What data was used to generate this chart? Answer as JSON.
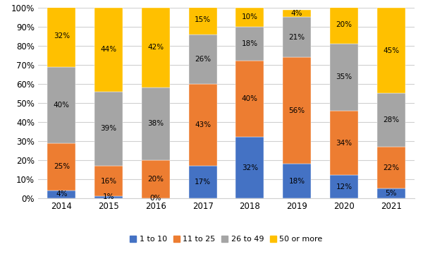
{
  "years": [
    "2014",
    "2015",
    "2016",
    "2017",
    "2018",
    "2019",
    "2020",
    "2021"
  ],
  "series": {
    "1 to 10": [
      4,
      1,
      0,
      17,
      32,
      18,
      12,
      5
    ],
    "11 to 25": [
      25,
      16,
      20,
      43,
      40,
      56,
      34,
      22
    ],
    "26 to 49": [
      40,
      39,
      38,
      26,
      18,
      21,
      35,
      28
    ],
    "50 or more": [
      32,
      44,
      42,
      15,
      10,
      4,
      20,
      45
    ]
  },
  "colors": {
    "1 to 10": "#4472C4",
    "11 to 25": "#ED7D31",
    "26 to 49": "#A5A5A5",
    "50 or more": "#FFC000"
  },
  "legend_order": [
    "1 to 10",
    "11 to 25",
    "26 to 49",
    "50 or more"
  ],
  "ylim": [
    0,
    100
  ],
  "yticks": [
    0,
    10,
    20,
    30,
    40,
    50,
    60,
    70,
    80,
    90,
    100
  ],
  "bar_width": 0.6,
  "figsize": [
    6.0,
    3.6
  ],
  "dpi": 100,
  "label_fontsize": 7.5,
  "tick_fontsize": 8.5,
  "legend_fontsize": 8.0
}
